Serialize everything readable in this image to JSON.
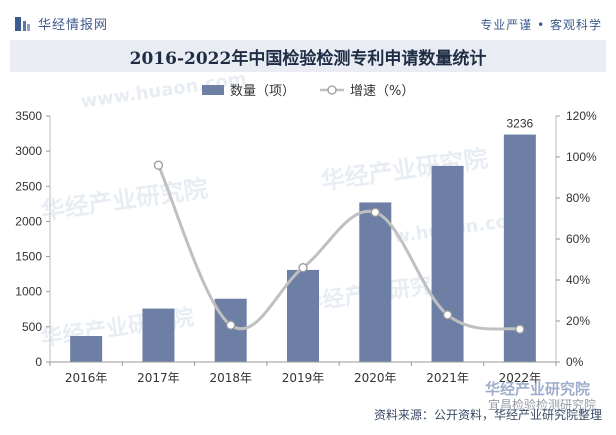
{
  "header": {
    "brand": "华经情报网",
    "slogan": "专业严谨 • 客观科学",
    "logo_icon": "huajing-logo-icon"
  },
  "watermark": {
    "brand": "华经产业研究院",
    "site": "www.huaon.com"
  },
  "corner": {
    "brand": "华经产业研究院",
    "sub": "宜昌检验检测研究院"
  },
  "footer": {
    "source": "资料来源：公开资料，华经产业研究院整理"
  },
  "colors": {
    "bar": "#6e7fa6",
    "line": "#c0c0c0",
    "marker_fill": "#ffffff",
    "marker_stroke": "#9a9a9a",
    "title_bg": "#e9edf3",
    "brand": "#3d5a8c"
  },
  "chart_data": {
    "type": "bar",
    "title": "2016-2022年中国检验检测专利申请数量统计",
    "categories": [
      "2016年",
      "2017年",
      "2018年",
      "2019年",
      "2020年",
      "2021年",
      "2022年"
    ],
    "series": [
      {
        "name": "数量（项）",
        "type": "bar",
        "axis": "left",
        "values": [
          370,
          760,
          900,
          1310,
          2270,
          2790,
          3236
        ]
      },
      {
        "name": "增速（%）",
        "type": "line",
        "axis": "right",
        "values": [
          null,
          96,
          18,
          46,
          73,
          23,
          16
        ]
      }
    ],
    "data_labels": [
      {
        "category": "2022年",
        "text": "3236"
      }
    ],
    "y_left": {
      "range": [
        0,
        3500
      ],
      "ticks": [
        "0",
        "500",
        "1000",
        "1500",
        "2000",
        "2500",
        "3000",
        "3500"
      ]
    },
    "y_right": {
      "range": [
        0,
        120
      ],
      "ticks": [
        "0%",
        "20%",
        "40%",
        "60%",
        "80%",
        "100%",
        "120%"
      ]
    },
    "grid": false,
    "legend_position": "top-center"
  }
}
